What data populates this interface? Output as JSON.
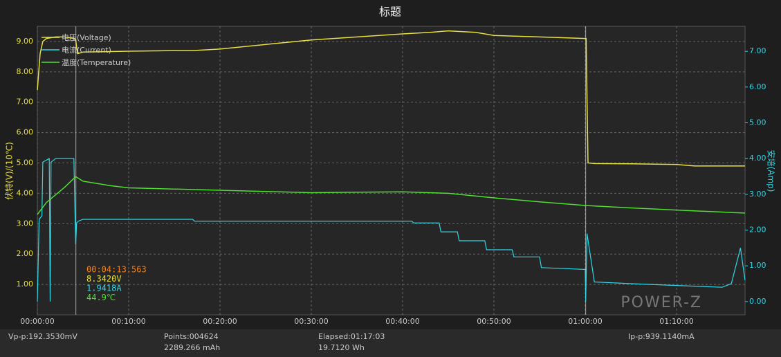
{
  "chart_data": {
    "type": "line",
    "title": "标题",
    "y_label": "伏特(V)/(10℃)",
    "y2_label": "安培(Amp)",
    "xlim": [
      0,
      77.5
    ],
    "xticks": [
      {
        "value": 0,
        "label": "00:00:00"
      },
      {
        "value": 10,
        "label": "00:10:00"
      },
      {
        "value": 20,
        "label": "00:20:00"
      },
      {
        "value": 30,
        "label": "00:30:00"
      },
      {
        "value": 40,
        "label": "00:40:00"
      },
      {
        "value": 50,
        "label": "00:50:00"
      },
      {
        "value": 60,
        "label": "01:00:00"
      },
      {
        "value": 70,
        "label": "01:10:00"
      }
    ],
    "ylim": [
      0,
      9.5
    ],
    "yticks": [
      {
        "value": 1,
        "label": "1.00"
      },
      {
        "value": 2,
        "label": "2.00"
      },
      {
        "value": 3,
        "label": "3.00"
      },
      {
        "value": 4,
        "label": "4.00"
      },
      {
        "value": 5,
        "label": "5.00"
      },
      {
        "value": 6,
        "label": "6.00"
      },
      {
        "value": 7,
        "label": "7.00"
      },
      {
        "value": 8,
        "label": "8.00"
      },
      {
        "value": 9,
        "label": "9.00"
      }
    ],
    "y2lim": [
      -0.37,
      7.7
    ],
    "y2ticks": [
      {
        "value": 0,
        "label": "0.00"
      },
      {
        "value": 1,
        "label": "1.00"
      },
      {
        "value": 2,
        "label": "2.00"
      },
      {
        "value": 3,
        "label": "3.00"
      },
      {
        "value": 4,
        "label": "4.00"
      },
      {
        "value": 5,
        "label": "5.00"
      },
      {
        "value": 6,
        "label": "6.00"
      },
      {
        "value": 7,
        "label": "7.00"
      }
    ],
    "grid": true,
    "cursor_lines": [
      4.22,
      60.05
    ],
    "series": [
      {
        "name": "电压(Voltage)",
        "color": "#e8e040",
        "x": [
          0,
          0.3,
          0.6,
          1,
          2,
          3,
          4,
          4.2,
          4.4,
          5,
          10,
          15,
          17,
          20,
          25,
          30,
          35,
          40,
          43,
          45,
          48,
          50,
          55,
          60,
          60.1,
          60.3,
          61,
          65,
          70,
          72,
          77.5
        ],
        "values": [
          7.4,
          8.6,
          9.0,
          9.1,
          9.15,
          9.15,
          9.1,
          9.05,
          8.6,
          8.65,
          8.68,
          8.7,
          8.7,
          8.75,
          8.9,
          9.05,
          9.15,
          9.25,
          9.3,
          9.35,
          9.3,
          9.2,
          9.15,
          9.1,
          9.1,
          5.0,
          4.98,
          4.97,
          4.95,
          4.9,
          4.9
        ]
      },
      {
        "name": "电流(Current)",
        "color": "#30d8e8",
        "axis": "y2",
        "x": [
          0,
          0.2,
          0.5,
          0.6,
          1.3,
          1.4,
          1.5,
          2,
          4,
          4.2,
          4.3,
          4.5,
          5,
          10,
          15,
          17,
          17.2,
          20,
          30,
          41,
          41.2,
          44,
          44.2,
          46,
          46.2,
          49,
          49.2,
          52,
          52.2,
          55,
          55.2,
          60,
          60.05,
          60.2,
          61,
          65,
          70,
          75,
          76,
          77,
          77.5
        ],
        "values": [
          0,
          2.3,
          2.4,
          3.9,
          4.0,
          0,
          3.9,
          4.0,
          4.0,
          1.6,
          2.2,
          2.25,
          2.3,
          2.3,
          2.3,
          2.3,
          2.25,
          2.25,
          2.25,
          2.25,
          2.2,
          2.2,
          1.95,
          1.95,
          1.7,
          1.7,
          1.45,
          1.45,
          1.25,
          1.25,
          0.95,
          0.9,
          0.0,
          1.9,
          0.55,
          0.5,
          0.45,
          0.4,
          0.5,
          1.5,
          0.6
        ]
      },
      {
        "name": "温度(Temperature)",
        "color": "#50e030",
        "x": [
          0,
          1,
          2,
          3,
          4.2,
          5,
          8,
          10,
          20,
          30,
          40,
          45,
          50,
          55,
          60,
          65,
          70,
          77.5
        ],
        "values": [
          3.3,
          3.7,
          3.95,
          4.2,
          4.55,
          4.4,
          4.25,
          4.18,
          4.1,
          4.02,
          4.05,
          4.0,
          3.85,
          3.72,
          3.6,
          3.52,
          3.45,
          3.35
        ]
      }
    ],
    "cursor_readout": [
      "00:04:13.563",
      "8.3420V",
      "1.9418A",
      "44.9℃"
    ],
    "brand": "POWER-Z",
    "footer": [
      "Vp-p:192.3530mV",
      "Points:004624",
      "2289.266 mAh",
      "Elapsed:01:17:03",
      "19.7120 Wh",
      "Ip-p:939.1140mA"
    ]
  }
}
